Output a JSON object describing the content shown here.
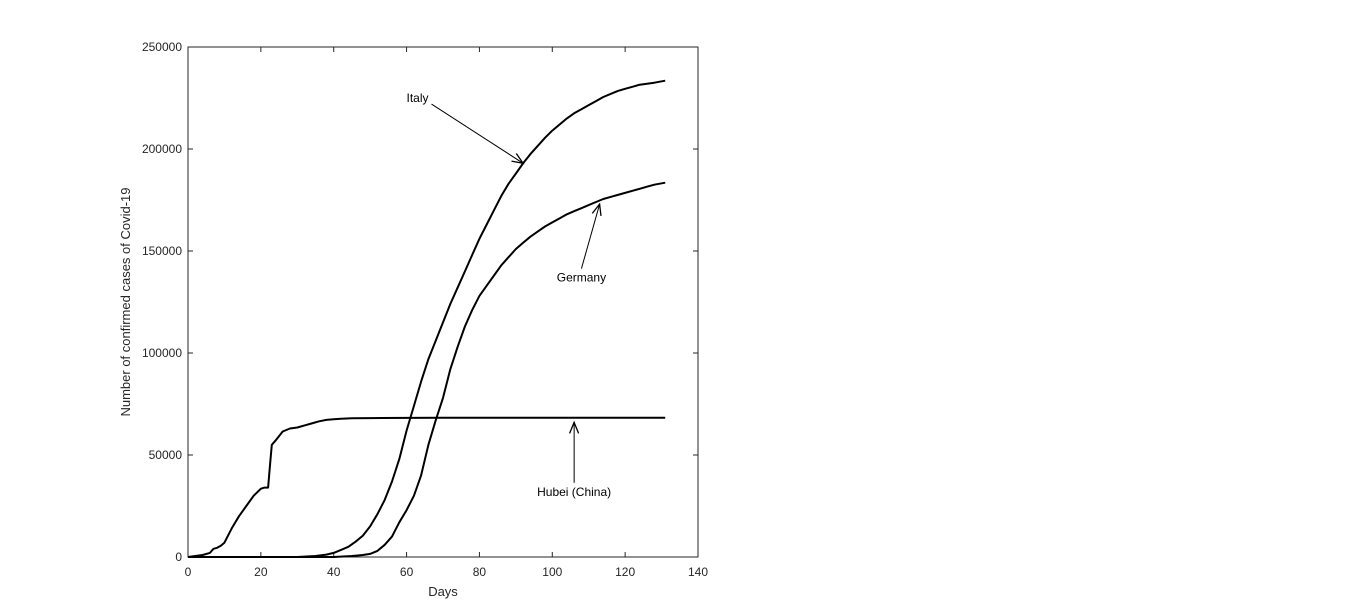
{
  "chart_data": {
    "type": "line",
    "title": "",
    "xlabel": "Days",
    "ylabel": "Number of confirmed cases of Covid-19",
    "xlim": [
      0,
      140
    ],
    "ylim": [
      0,
      250000
    ],
    "xticks": [
      0,
      20,
      40,
      60,
      80,
      100,
      120,
      140
    ],
    "yticks": [
      0,
      50000,
      100000,
      150000,
      200000,
      250000
    ],
    "grid": false,
    "legend": "none",
    "line_color": "#000000",
    "series": [
      {
        "name": "Hubei (China)",
        "x": [
          0,
          2,
          4,
          6,
          7,
          8,
          9,
          10,
          12,
          14,
          16,
          18,
          20,
          21,
          22,
          22.5,
          23,
          24,
          26,
          28,
          30,
          32,
          34,
          36,
          38,
          40,
          42,
          45,
          50,
          60,
          70,
          80,
          90,
          100,
          110,
          120,
          131
        ],
        "values": [
          0,
          500,
          1000,
          2000,
          4000,
          4500,
          5500,
          7000,
          14000,
          20000,
          25000,
          30000,
          33500,
          34000,
          34000,
          45000,
          55000,
          57000,
          61500,
          63000,
          63500,
          64500,
          65500,
          66500,
          67200,
          67500,
          67800,
          68000,
          68100,
          68200,
          68300,
          68300,
          68300,
          68300,
          68300,
          68300,
          68300
        ]
      },
      {
        "name": "Italy",
        "x": [
          0,
          30,
          35,
          38,
          40,
          42,
          44,
          46,
          48,
          50,
          52,
          54,
          56,
          58,
          60,
          62,
          64,
          66,
          68,
          70,
          72,
          74,
          76,
          78,
          80,
          82,
          84,
          86,
          88,
          90,
          92,
          94,
          96,
          98,
          100,
          102,
          104,
          106,
          108,
          110,
          112,
          114,
          116,
          118,
          120,
          122,
          124,
          126,
          128,
          131
        ],
        "values": [
          0,
          0,
          500,
          1200,
          2000,
          3500,
          5000,
          7500,
          10500,
          15000,
          21000,
          28000,
          37000,
          48000,
          62000,
          74000,
          86000,
          97000,
          106000,
          115000,
          124000,
          132000,
          140000,
          148000,
          156000,
          163000,
          170000,
          177000,
          183000,
          188000,
          193000,
          197500,
          201500,
          205500,
          209000,
          212000,
          215000,
          217500,
          219500,
          221500,
          223500,
          225500,
          227000,
          228500,
          229500,
          230500,
          231500,
          232000,
          232500,
          233500
        ]
      },
      {
        "name": "Germany",
        "x": [
          0,
          40,
          45,
          48,
          50,
          52,
          54,
          56,
          58,
          60,
          62,
          64,
          66,
          68,
          70,
          72,
          74,
          76,
          78,
          80,
          82,
          84,
          86,
          88,
          90,
          92,
          94,
          96,
          98,
          100,
          102,
          104,
          106,
          108,
          110,
          112,
          114,
          116,
          118,
          120,
          122,
          124,
          126,
          128,
          131
        ],
        "values": [
          0,
          0,
          500,
          1000,
          1500,
          3000,
          6000,
          10000,
          17000,
          23000,
          30000,
          40000,
          55000,
          67000,
          78000,
          92000,
          103000,
          113000,
          121000,
          128000,
          133000,
          138000,
          143000,
          147000,
          151000,
          154000,
          157000,
          159500,
          162000,
          164000,
          166000,
          168000,
          169500,
          171000,
          172500,
          174000,
          175500,
          176500,
          177500,
          178500,
          179500,
          180500,
          181500,
          182500,
          183500
        ]
      }
    ],
    "annotations": [
      {
        "text": "Italy",
        "label_at": [
          63,
          223000
        ],
        "arrow_to": [
          92,
          193000
        ]
      },
      {
        "text": "Germany",
        "label_at": [
          108,
          135000
        ],
        "arrow_to": [
          113,
          173000
        ]
      },
      {
        "text": "Hubei (China)",
        "label_at": [
          106,
          30000
        ],
        "arrow_to": [
          106,
          66000
        ]
      }
    ]
  }
}
